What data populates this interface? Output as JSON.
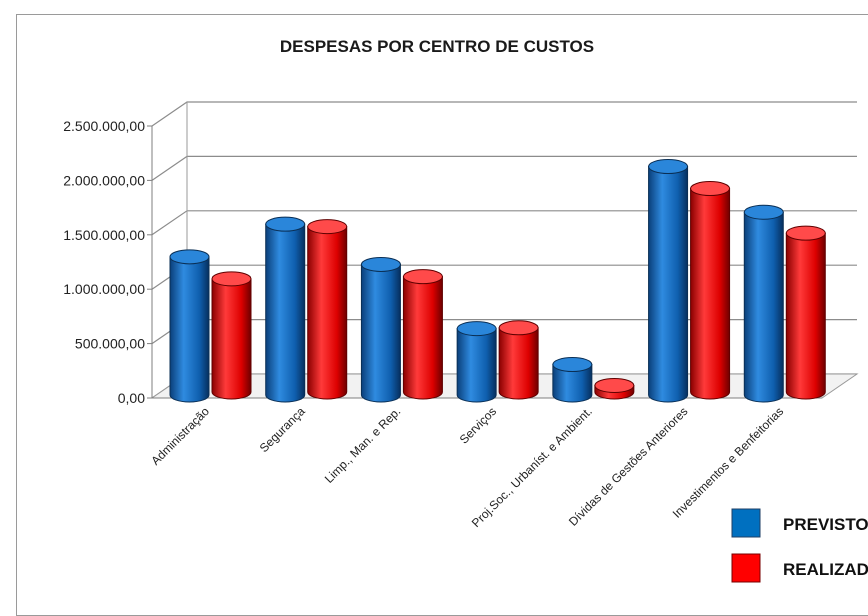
{
  "chart_data": {
    "type": "bar",
    "title": "DESPESAS POR CENTRO DE CUSTOS",
    "xlabel": "",
    "ylabel": "",
    "ylim": [
      0,
      2500000
    ],
    "yticks": [
      "0,00",
      "500.000,00",
      "1.000.000,00",
      "1.500.000,00",
      "2.000.000,00",
      "2.500.000,00"
    ],
    "grid": true,
    "legend_position": "bottom-right",
    "categories": [
      "Administração",
      "Segurança",
      "Limp., Man. e Rep.",
      "Serviços",
      "Proj.Soc., Urbaníst. e Ambient.",
      "Dívidas de Gestões Anteriores",
      "Investimentos e Benfeitorias"
    ],
    "series": [
      {
        "name": "PREVISTO",
        "color": "#0070c0",
        "values": [
          1270000,
          1570000,
          1200000,
          610000,
          280000,
          2100000,
          1680000
        ]
      },
      {
        "name": "REALIZADO",
        "color": "#ff0000",
        "values": [
          1040000,
          1520000,
          1060000,
          590000,
          60000,
          1870000,
          1460000
        ]
      }
    ]
  }
}
